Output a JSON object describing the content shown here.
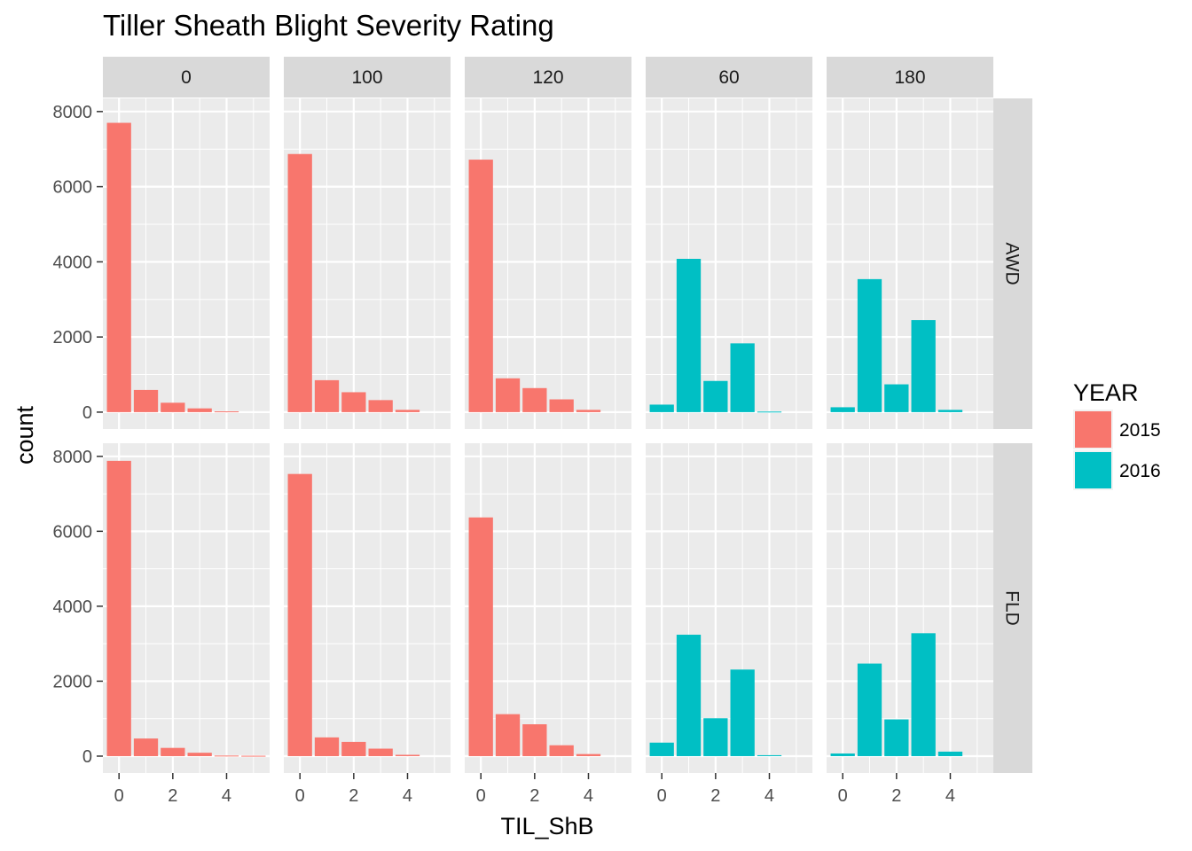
{
  "chart_data": {
    "type": "bar",
    "title": "Tiller Sheath Blight Severity Rating",
    "xlabel": "TIL_ShB",
    "ylabel": "count",
    "x_ticks": [
      0,
      2,
      4
    ],
    "x_range": [
      -0.6,
      5.6
    ],
    "y_ticks": [
      0,
      2000,
      4000,
      6000,
      8000
    ],
    "y_tick_labels": [
      "0",
      "2000",
      "4000",
      "6000",
      "8000"
    ],
    "ylim": [
      -450,
      8350
    ],
    "grid": true,
    "facet_columns": [
      "0",
      "100",
      "120",
      "60",
      "180"
    ],
    "facet_rows": [
      "AWD",
      "FLD"
    ],
    "legend": {
      "title": "YEAR",
      "placement": "right",
      "entries": [
        {
          "label": "2015",
          "color": "#F8766D"
        },
        {
          "label": "2016",
          "color": "#00BFC4"
        }
      ]
    },
    "x_categories": [
      0,
      1,
      2,
      3,
      4,
      5
    ],
    "panels": [
      {
        "row": "AWD",
        "col": "0",
        "year": "2015",
        "values": [
          7700,
          590,
          250,
          100,
          20,
          0
        ]
      },
      {
        "row": "AWD",
        "col": "100",
        "year": "2015",
        "values": [
          6870,
          850,
          530,
          320,
          60,
          0
        ]
      },
      {
        "row": "AWD",
        "col": "120",
        "year": "2015",
        "values": [
          6720,
          900,
          640,
          340,
          60,
          0
        ]
      },
      {
        "row": "AWD",
        "col": "60",
        "year": "2016",
        "values": [
          200,
          4080,
          830,
          1830,
          15,
          0
        ]
      },
      {
        "row": "AWD",
        "col": "180",
        "year": "2016",
        "values": [
          130,
          3540,
          740,
          2450,
          60,
          0
        ]
      },
      {
        "row": "FLD",
        "col": "0",
        "year": "2015",
        "values": [
          7880,
          470,
          220,
          90,
          15,
          10
        ]
      },
      {
        "row": "FLD",
        "col": "100",
        "year": "2015",
        "values": [
          7530,
          500,
          380,
          200,
          35,
          0
        ]
      },
      {
        "row": "FLD",
        "col": "120",
        "year": "2015",
        "values": [
          6370,
          1120,
          850,
          290,
          55,
          0
        ]
      },
      {
        "row": "FLD",
        "col": "60",
        "year": "2016",
        "values": [
          360,
          3240,
          1010,
          2310,
          25,
          0
        ]
      },
      {
        "row": "FLD",
        "col": "180",
        "year": "2016",
        "values": [
          70,
          2470,
          980,
          3280,
          120,
          0
        ]
      }
    ]
  }
}
